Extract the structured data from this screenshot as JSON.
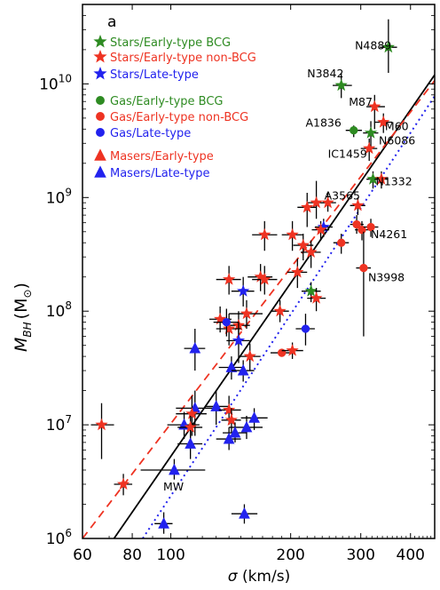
{
  "chart_data": {
    "type": "scatter",
    "panel_label": "a",
    "xlabel_sym": "σ",
    "xlabel_unit": " (km/s)",
    "ylabel_main": "M",
    "ylabel_sub": "BH",
    "ylabel_unit": "(M",
    "ylabel_sun": "⊙",
    "ylabel_close": ")",
    "x_scale": "log",
    "y_scale": "log",
    "xlim": [
      60,
      460
    ],
    "ylim": [
      1000000,
      50000000000
    ],
    "x_ticks": [
      {
        "value": 60,
        "label": "60"
      },
      {
        "value": 80,
        "label": "80"
      },
      {
        "value": 100,
        "label": "100"
      },
      {
        "value": 200,
        "label": "200"
      },
      {
        "value": 300,
        "label": "300"
      },
      {
        "value": 400,
        "label": "400"
      }
    ],
    "y_ticks": [
      {
        "value": 1000000,
        "base": "10",
        "exp": "6"
      },
      {
        "value": 10000000,
        "base": "10",
        "exp": "7"
      },
      {
        "value": 100000000,
        "base": "10",
        "exp": "8"
      },
      {
        "value": 1000000000,
        "base": "10",
        "exp": "9"
      },
      {
        "value": 10000000000,
        "base": "10",
        "exp": "10"
      }
    ],
    "colors": {
      "green": "#2e8b22",
      "red": "#ee3322",
      "blue": "#2222ee",
      "black": "#000000",
      "errorbar": "#000000"
    },
    "legend": {
      "placement": "top-left",
      "entries": [
        {
          "label": "Stars/Early-type BCG",
          "marker": "star",
          "color": "#2e8b22"
        },
        {
          "label": "Stars/Early-type non-BCG",
          "marker": "star",
          "color": "#ee3322"
        },
        {
          "label": "Stars/Late-type",
          "marker": "star",
          "color": "#2222ee"
        },
        {
          "label": "Gas/Early-type BCG",
          "marker": "circle",
          "color": "#2e8b22"
        },
        {
          "label": "Gas/Early-type non-BCG",
          "marker": "circle",
          "color": "#ee3322"
        },
        {
          "label": "Gas/Late-type",
          "marker": "circle",
          "color": "#2222ee"
        },
        {
          "label": "Masers/Early-type",
          "marker": "triangle",
          "color": "#ee3322"
        },
        {
          "label": "Masers/Late-type",
          "marker": "triangle",
          "color": "#2222ee"
        }
      ]
    },
    "fit_lines": [
      {
        "style": "solid",
        "color": "#000000",
        "points": [
          [
            72,
            1000000
          ],
          [
            460,
            12000000000
          ]
        ]
      },
      {
        "style": "dashed",
        "color": "#ee3322",
        "points": [
          [
            60,
            1000000
          ],
          [
            460,
            10700000000
          ]
        ]
      },
      {
        "style": "dotted",
        "color": "#2222ee",
        "points": [
          [
            85,
            1000000
          ],
          [
            460,
            7800000000
          ]
        ]
      }
    ],
    "points": [
      {
        "x": 352,
        "y": 21000000000,
        "m": "star",
        "c": "green",
        "xerr": [
          335,
          370
        ],
        "yerr": [
          12500000000,
          37000000000
        ]
      },
      {
        "x": 268,
        "y": 9700000000,
        "m": "star",
        "c": "green",
        "xerr": [
          255,
          285
        ],
        "yerr": [
          7500000000,
          12500000000
        ]
      },
      {
        "x": 325,
        "y": 6300000000,
        "m": "star",
        "c": "red",
        "xerr": [
          310,
          345
        ],
        "yerr": [
          4000000000,
          8000000000
        ]
      },
      {
        "x": 342,
        "y": 4600000000,
        "m": "star",
        "c": "red",
        "xerr": [
          325,
          360
        ],
        "yerr": [
          3700000000,
          5500000000
        ]
      },
      {
        "x": 288,
        "y": 3900000000,
        "m": "circle",
        "c": "green",
        "xerr": [
          275,
          302
        ],
        "yerr": [
          3400000000,
          4300000000
        ]
      },
      {
        "x": 318,
        "y": 3700000000,
        "m": "star",
        "c": "green",
        "xerr": [
          304,
          332
        ],
        "yerr": [
          2700000000,
          4700000000
        ]
      },
      {
        "x": 315,
        "y": 2700000000,
        "m": "star",
        "c": "red",
        "xerr": [
          300,
          330
        ],
        "yerr": [
          2100000000,
          3300000000
        ]
      },
      {
        "x": 322,
        "y": 1450000000,
        "m": "star",
        "c": "green",
        "xerr": [
          310,
          335
        ],
        "yerr": [
          1200000000,
          1700000000
        ]
      },
      {
        "x": 338,
        "y": 1450000000,
        "m": "star",
        "c": "red",
        "xerr": [
          325,
          350
        ],
        "yerr": [
          1200000000,
          1700000000
        ]
      },
      {
        "x": 232,
        "y": 900000000,
        "m": "star",
        "c": "red",
        "xerr": [
          220,
          245
        ],
        "yerr": [
          650000000,
          1400000000
        ]
      },
      {
        "x": 248,
        "y": 900000000,
        "m": "star",
        "c": "red",
        "xerr": [
          238,
          260
        ],
        "yerr": [
          750000000,
          1100000000
        ]
      },
      {
        "x": 220,
        "y": 820000000,
        "m": "star",
        "c": "red",
        "xerr": [
          208,
          232
        ],
        "yerr": [
          550000000,
          1100000000
        ]
      },
      {
        "x": 295,
        "y": 850000000,
        "m": "star",
        "c": "red",
        "xerr": [
          282,
          308
        ],
        "yerr": [
          700000000,
          1000000000
        ]
      },
      {
        "x": 242,
        "y": 550000000,
        "m": "star",
        "c": "blue",
        "xerr": [
          230,
          255
        ],
        "yerr": [
          450000000,
          650000000
        ]
      },
      {
        "x": 238,
        "y": 520000000,
        "m": "star",
        "c": "red",
        "xerr": [
          226,
          250
        ],
        "yerr": [
          420000000,
          620000000
        ]
      },
      {
        "x": 293,
        "y": 580000000,
        "m": "circle",
        "c": "red",
        "xerr": [
          282,
          305
        ],
        "yerr": [
          480000000,
          700000000
        ]
      },
      {
        "x": 302,
        "y": 520000000,
        "m": "circle",
        "c": "red",
        "xerr": [
          290,
          315
        ],
        "yerr": [
          420000000,
          620000000
        ]
      },
      {
        "x": 318,
        "y": 550000000,
        "m": "circle",
        "c": "red",
        "xerr": [
          305,
          332
        ],
        "yerr": [
          450000000,
          650000000
        ]
      },
      {
        "x": 268,
        "y": 400000000,
        "m": "circle",
        "c": "red",
        "xerr": [
          256,
          280
        ],
        "yerr": [
          320000000,
          480000000
        ]
      },
      {
        "x": 305,
        "y": 240000000,
        "m": "circle",
        "c": "red",
        "xerr": [
          292,
          318
        ],
        "yerr": [
          60000000,
          500000000
        ]
      },
      {
        "x": 172,
        "y": 470000000,
        "m": "star",
        "c": "red",
        "xerr": [
          160,
          185
        ],
        "yerr": [
          340000000,
          620000000
        ]
      },
      {
        "x": 202,
        "y": 470000000,
        "m": "star",
        "c": "red",
        "xerr": [
          190,
          215
        ],
        "yerr": [
          340000000,
          620000000
        ]
      },
      {
        "x": 215,
        "y": 380000000,
        "m": "star",
        "c": "red",
        "xerr": [
          203,
          228
        ],
        "yerr": [
          280000000,
          480000000
        ]
      },
      {
        "x": 225,
        "y": 330000000,
        "m": "star",
        "c": "red",
        "xerr": [
          212,
          238
        ],
        "yerr": [
          240000000,
          420000000
        ]
      },
      {
        "x": 208,
        "y": 220000000,
        "m": "star",
        "c": "red",
        "xerr": [
          196,
          220
        ],
        "yerr": [
          160000000,
          290000000
        ]
      },
      {
        "x": 168,
        "y": 200000000,
        "m": "star",
        "c": "red",
        "xerr": [
          156,
          180
        ],
        "yerr": [
          150000000,
          260000000
        ]
      },
      {
        "x": 172,
        "y": 190000000,
        "m": "star",
        "c": "red",
        "xerr": [
          160,
          185
        ],
        "yerr": [
          140000000,
          250000000
        ]
      },
      {
        "x": 140,
        "y": 190000000,
        "m": "star",
        "c": "red",
        "xerr": [
          130,
          150
        ],
        "yerr": [
          140000000,
          250000000
        ]
      },
      {
        "x": 152,
        "y": 150000000,
        "m": "star",
        "c": "blue",
        "xerr": [
          142,
          162
        ],
        "yerr": [
          110000000,
          200000000
        ]
      },
      {
        "x": 225,
        "y": 150000000,
        "m": "star",
        "c": "green",
        "xerr": [
          213,
          238
        ],
        "yerr": [
          120000000,
          180000000
        ]
      },
      {
        "x": 232,
        "y": 130000000,
        "m": "star",
        "c": "red",
        "xerr": [
          220,
          245
        ],
        "yerr": [
          100000000,
          160000000
        ]
      },
      {
        "x": 188,
        "y": 100000000,
        "m": "star",
        "c": "red",
        "xerr": [
          178,
          198
        ],
        "yerr": [
          80000000,
          125000000
        ]
      },
      {
        "x": 155,
        "y": 95000000,
        "m": "star",
        "c": "red",
        "xerr": [
          140,
          170
        ],
        "yerr": [
          70000000,
          125000000
        ]
      },
      {
        "x": 133,
        "y": 85000000,
        "m": "star",
        "c": "red",
        "xerr": [
          125,
          142
        ],
        "yerr": [
          65000000,
          110000000
        ]
      },
      {
        "x": 148,
        "y": 75000000,
        "m": "star",
        "c": "red",
        "xerr": [
          138,
          158
        ],
        "yerr": [
          55000000,
          100000000
        ]
      },
      {
        "x": 140,
        "y": 70000000,
        "m": "star",
        "c": "red",
        "xerr": [
          130,
          150
        ],
        "yerr": [
          50000000,
          95000000
        ]
      },
      {
        "x": 138,
        "y": 80000000,
        "m": "circle",
        "c": "blue",
        "xerr": [
          128,
          148
        ],
        "yerr": [
          60000000,
          105000000
        ]
      },
      {
        "x": 148,
        "y": 55000000,
        "m": "star",
        "c": "blue",
        "xerr": [
          138,
          158
        ],
        "yerr": [
          35000000,
          80000000
        ]
      },
      {
        "x": 218,
        "y": 70000000,
        "m": "circle",
        "c": "blue",
        "xerr": [
          206,
          230
        ],
        "yerr": [
          50000000,
          95000000
        ]
      },
      {
        "x": 190,
        "y": 43000000,
        "m": "circle",
        "c": "red",
        "xerr": [
          178,
          202
        ],
        "yerr": [
          40000000,
          46000000
        ]
      },
      {
        "x": 202,
        "y": 45000000,
        "m": "star",
        "c": "red",
        "xerr": [
          190,
          215
        ],
        "yerr": [
          38000000,
          53000000
        ]
      },
      {
        "x": 158,
        "y": 40000000,
        "m": "star",
        "c": "red",
        "xerr": [
          148,
          168
        ],
        "yerr": [
          30000000,
          52000000
        ]
      },
      {
        "x": 115,
        "y": 47000000,
        "m": "triangle",
        "c": "blue",
        "xerr": [
          108,
          122
        ],
        "yerr": [
          30000000,
          70000000
        ]
      },
      {
        "x": 142,
        "y": 32000000,
        "m": "triangle",
        "c": "blue",
        "xerr": [
          132,
          152
        ],
        "yerr": [
          25000000,
          40000000
        ]
      },
      {
        "x": 152,
        "y": 30000000,
        "m": "triangle",
        "c": "blue",
        "xerr": [
          142,
          162
        ],
        "yerr": [
          24000000,
          37000000
        ]
      },
      {
        "x": 115,
        "y": 14000000,
        "m": "triangle",
        "c": "blue",
        "xerr": [
          103,
          128
        ],
        "yerr": [
          8000000,
          20000000
        ]
      },
      {
        "x": 113,
        "y": 12500000,
        "m": "star",
        "c": "red",
        "xerr": [
          103,
          123
        ],
        "yerr": [
          8000000,
          18000000
        ]
      },
      {
        "x": 130,
        "y": 14500000,
        "m": "triangle",
        "c": "blue",
        "xerr": [
          122,
          140
        ],
        "yerr": [
          10000000,
          20000000
        ]
      },
      {
        "x": 140,
        "y": 13500000,
        "m": "star",
        "c": "red",
        "xerr": [
          132,
          150
        ],
        "yerr": [
          10000000,
          18000000
        ]
      },
      {
        "x": 162,
        "y": 11500000,
        "m": "triangle",
        "c": "blue",
        "xerr": [
          150,
          175
        ],
        "yerr": [
          9000000,
          14000000
        ]
      },
      {
        "x": 142,
        "y": 11000000,
        "m": "star",
        "c": "red",
        "xerr": [
          134,
          150
        ],
        "yerr": [
          8500000,
          14000000
        ]
      },
      {
        "x": 108,
        "y": 10000000,
        "m": "triangle",
        "c": "blue",
        "xerr": [
          98,
          118
        ],
        "yerr": [
          7500000,
          13000000
        ]
      },
      {
        "x": 112,
        "y": 9500000,
        "m": "star",
        "c": "red",
        "xerr": [
          104,
          120
        ],
        "yerr": [
          7000000,
          12000000
        ]
      },
      {
        "x": 155,
        "y": 9500000,
        "m": "triangle",
        "c": "blue",
        "xerr": [
          140,
          170
        ],
        "yerr": [
          7500000,
          12000000
        ]
      },
      {
        "x": 145,
        "y": 8500000,
        "m": "triangle",
        "c": "blue",
        "xerr": [
          135,
          155
        ],
        "yerr": [
          7000000,
          10500000
        ]
      },
      {
        "x": 140,
        "y": 7500000,
        "m": "triangle",
        "c": "blue",
        "xerr": [
          130,
          150
        ],
        "yerr": [
          6000000,
          9500000
        ]
      },
      {
        "x": 112,
        "y": 6800000,
        "m": "triangle",
        "c": "blue",
        "xerr": [
          104,
          120
        ],
        "yerr": [
          5000000,
          9000000
        ]
      },
      {
        "x": 67,
        "y": 10000000,
        "m": "star",
        "c": "red",
        "xerr": [
          63,
          72
        ],
        "yerr": [
          5000000,
          15500000
        ]
      },
      {
        "x": 102,
        "y": 4000000,
        "m": "triangle",
        "c": "blue",
        "xerr": [
          84,
          122
        ],
        "yerr": [
          3300000,
          5000000
        ]
      },
      {
        "x": 76,
        "y": 3000000,
        "m": "star",
        "c": "red",
        "xerr": [
          72,
          80
        ],
        "yerr": [
          2400000,
          3700000
        ]
      },
      {
        "x": 153,
        "y": 1650000,
        "m": "triangle",
        "c": "blue",
        "xerr": [
          142,
          165
        ],
        "yerr": [
          1350000,
          2000000
        ]
      },
      {
        "x": 96,
        "y": 1350000,
        "m": "triangle",
        "c": "blue",
        "xerr": [
          91,
          101
        ],
        "yerr": [
          1100000,
          1700000
        ]
      }
    ],
    "annotations": [
      {
        "text": "N4889",
        "x": 290,
        "y": 22000000000
      },
      {
        "text": "N3842",
        "x": 220,
        "y": 12500000000
      },
      {
        "text": "M87",
        "x": 280,
        "y": 7000000000
      },
      {
        "text": "A1836",
        "x": 218,
        "y": 4600000000
      },
      {
        "text": "M60",
        "x": 345,
        "y": 4300000000
      },
      {
        "text": "N6086",
        "x": 333,
        "y": 3200000000
      },
      {
        "text": "IC1459",
        "x": 248,
        "y": 2450000000
      },
      {
        "text": "N1332",
        "x": 327,
        "y": 1400000000
      },
      {
        "text": "A3565",
        "x": 243,
        "y": 1050000000
      },
      {
        "text": "N4261",
        "x": 318,
        "y": 480000000
      },
      {
        "text": "N3998",
        "x": 313,
        "y": 200000000
      },
      {
        "text": "MW",
        "x": 88,
        "y": 3400000000
      }
    ]
  }
}
